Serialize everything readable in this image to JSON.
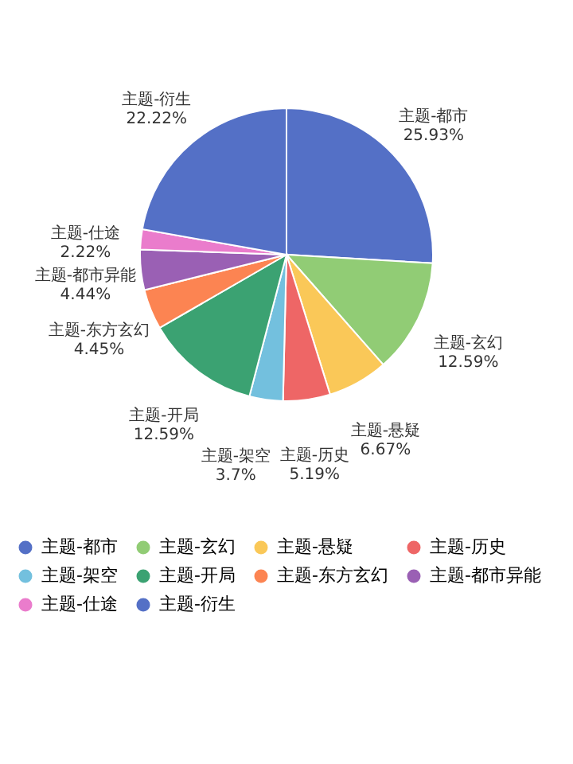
{
  "chart_data": {
    "type": "pie",
    "categories": [
      "主题-都市",
      "主题-玄幻",
      "主题-悬疑",
      "主题-历史",
      "主题-架空",
      "主题-开局",
      "主题-东方玄幻",
      "主题-都市异能",
      "主题-仕途",
      "主题-衍生"
    ],
    "values": [
      25.93,
      12.59,
      6.67,
      5.19,
      3.7,
      12.59,
      4.45,
      4.44,
      2.22,
      22.22
    ],
    "value_labels": [
      "25.93%",
      "12.59%",
      "6.67%",
      "5.19%",
      "3.7%",
      "12.59%",
      "4.45%",
      "4.44%",
      "2.22%",
      "22.22%"
    ],
    "colors": [
      "#5470c6",
      "#91cc75",
      "#fac858",
      "#ee6666",
      "#73c0de",
      "#3ba272",
      "#fc8452",
      "#9a60b4",
      "#ea7ccc",
      "#5470c6"
    ],
    "legend": "bottom"
  }
}
